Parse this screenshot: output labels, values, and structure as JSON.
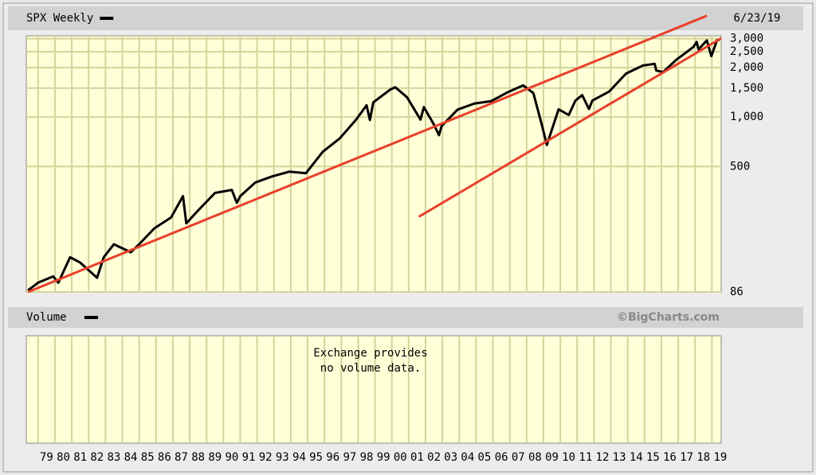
{
  "chart_data": {
    "type": "line",
    "title": "SPX Weekly",
    "date_label": "6/23/19",
    "volume_label": "Volume",
    "source": "©BigCharts.com",
    "volume_message": [
      "Exchange provides",
      "no volume data."
    ],
    "log_y": true,
    "grid": true,
    "plot_color": "#ffffd8",
    "grid_color": "#d4d49c",
    "xlim": [
      1978.3,
      2019.55
    ],
    "ylim": [
      86,
      3126
    ],
    "yticks": [
      86,
      500,
      {
        "value": 1000,
        "label": "1,000"
      },
      {
        "value": 1500,
        "label": "1,500"
      },
      {
        "value": 2000,
        "label": "2,000"
      },
      {
        "value": 2500,
        "label": "2,500"
      },
      {
        "value": 3000,
        "label": "3,000"
      }
    ],
    "xticks": [
      {
        "value": 1979,
        "label": "79"
      },
      {
        "value": 1980,
        "label": "80"
      },
      {
        "value": 1981,
        "label": "81"
      },
      {
        "value": 1982,
        "label": "82"
      },
      {
        "value": 1983,
        "label": "83"
      },
      {
        "value": 1984,
        "label": "84"
      },
      {
        "value": 1985,
        "label": "85"
      },
      {
        "value": 1986,
        "label": "86"
      },
      {
        "value": 1987,
        "label": "87"
      },
      {
        "value": 1988,
        "label": "88"
      },
      {
        "value": 1989,
        "label": "89"
      },
      {
        "value": 1990,
        "label": "90"
      },
      {
        "value": 1991,
        "label": "91"
      },
      {
        "value": 1992,
        "label": "92"
      },
      {
        "value": 1993,
        "label": "93"
      },
      {
        "value": 1994,
        "label": "94"
      },
      {
        "value": 1995,
        "label": "95"
      },
      {
        "value": 1996,
        "label": "96"
      },
      {
        "value": 1997,
        "label": "97"
      },
      {
        "value": 1998,
        "label": "98"
      },
      {
        "value": 1999,
        "label": "99"
      },
      {
        "value": 2000,
        "label": "00"
      },
      {
        "value": 2001,
        "label": "01"
      },
      {
        "value": 2002,
        "label": "02"
      },
      {
        "value": 2003,
        "label": "03"
      },
      {
        "value": 2004,
        "label": "04"
      },
      {
        "value": 2005,
        "label": "05"
      },
      {
        "value": 2006,
        "label": "06"
      },
      {
        "value": 2007,
        "label": "07"
      },
      {
        "value": 2008,
        "label": "08"
      },
      {
        "value": 2009,
        "label": "09"
      },
      {
        "value": 2010,
        "label": "10"
      },
      {
        "value": 2011,
        "label": "11"
      },
      {
        "value": 2012,
        "label": "12"
      },
      {
        "value": 2013,
        "label": "13"
      },
      {
        "value": 2014,
        "label": "14"
      },
      {
        "value": 2015,
        "label": "15"
      },
      {
        "value": 2016,
        "label": "16"
      },
      {
        "value": 2017,
        "label": "17"
      },
      {
        "value": 2018,
        "label": "18"
      },
      {
        "value": 2019,
        "label": "19"
      }
    ],
    "x": [
      1978.4,
      1979.0,
      1979.9,
      1980.2,
      1980.9,
      1981.5,
      1982.5,
      1982.9,
      1983.5,
      1984.5,
      1985.0,
      1985.9,
      1986.9,
      1987.6,
      1987.8,
      1988.5,
      1989.5,
      1990.5,
      1990.8,
      1991.0,
      1991.9,
      1992.9,
      1993.9,
      1994.9,
      1995.9,
      1996.9,
      1997.9,
      1998.5,
      1998.7,
      1998.9,
      1999.9,
      2000.2,
      2000.9,
      2001.7,
      2001.9,
      2002.5,
      2002.8,
      2002.95,
      2003.9,
      2004.9,
      2005.9,
      2006.9,
      2007.8,
      2008.4,
      2008.9,
      2009.2,
      2009.9,
      2010.5,
      2010.9,
      2011.3,
      2011.7,
      2011.9,
      2012.9,
      2013.9,
      2014.9,
      2015.6,
      2015.7,
      2016.1,
      2016.9,
      2017.9,
      2018.1,
      2018.2,
      2018.7,
      2018.97,
      2019.3,
      2019.45
    ],
    "series": [
      {
        "name": "SPX Weekly",
        "color": "#000000",
        "values": [
          88,
          98,
          107,
          98,
          140,
          130,
          105,
          140,
          168,
          150,
          168,
          210,
          245,
          330,
          225,
          270,
          345,
          360,
          300,
          330,
          400,
          435,
          465,
          455,
          615,
          740,
          970,
          1180,
          960,
          1230,
          1469,
          1520,
          1320,
          965,
          1150,
          900,
          776,
          880,
          1110,
          1210,
          1250,
          1420,
          1560,
          1400,
          900,
          676,
          1115,
          1030,
          1260,
          1360,
          1120,
          1260,
          1430,
          1840,
          2060,
          2110,
          1920,
          1880,
          2240,
          2670,
          2870,
          2580,
          2930,
          2350,
          2940,
          2950
        ]
      }
    ],
    "trendlines": [
      {
        "color": "#e8402a",
        "x": [
          1978.4,
          2018.7
        ],
        "y": [
          86,
          4140
        ]
      },
      {
        "color": "#e8402a",
        "x": [
          2001.6,
          2019.55
        ],
        "y": [
          247,
          3020
        ]
      }
    ]
  }
}
